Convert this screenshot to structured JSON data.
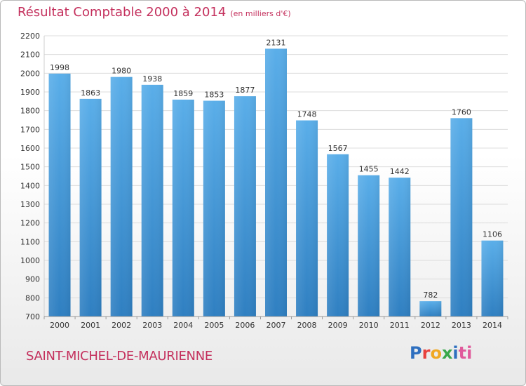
{
  "header": {
    "title": "Résultat Comptable 2000 à 2014",
    "subtitle": "(en milliers d'€)"
  },
  "footer": {
    "commune": "SAINT-MICHEL-DE-MAURIENNE",
    "logo_text": "Proxiti",
    "logo_letters": [
      "P",
      "r",
      "o",
      "x",
      "i",
      "ti"
    ]
  },
  "colors": {
    "title": "#c4305d",
    "bar_top": "#5aaee9",
    "bar_bottom": "#2f7fc1",
    "grid": "#dcdcdc"
  },
  "chart_data": {
    "type": "bar",
    "categories": [
      "2000",
      "2001",
      "2002",
      "2003",
      "2004",
      "2005",
      "2006",
      "2007",
      "2008",
      "2009",
      "2010",
      "2011",
      "2012",
      "2013",
      "2014"
    ],
    "values": [
      1998,
      1863,
      1980,
      1938,
      1859,
      1853,
      1877,
      2131,
      1748,
      1567,
      1455,
      1442,
      782,
      1760,
      1106
    ],
    "ylim": [
      700,
      2200
    ],
    "yticks": [
      700,
      800,
      900,
      1000,
      1100,
      1200,
      1300,
      1400,
      1500,
      1600,
      1700,
      1800,
      1900,
      2000,
      2100,
      2200
    ],
    "grid": true,
    "data_labels": true
  }
}
